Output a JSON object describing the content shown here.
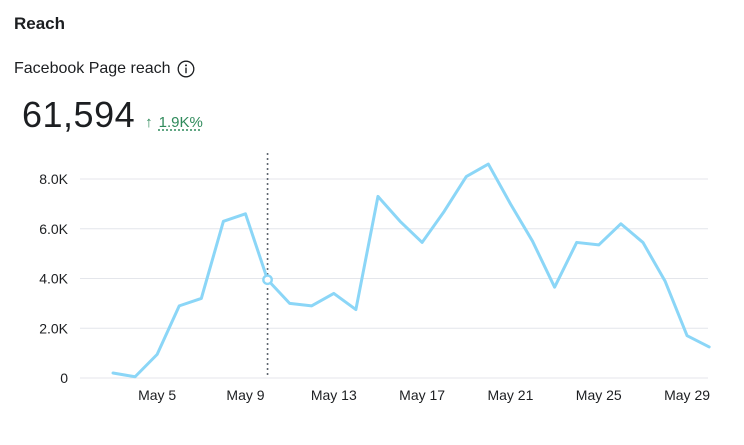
{
  "section": {
    "title": "Reach"
  },
  "metric": {
    "label": "Facebook Page reach",
    "info_icon": "info-circle-icon",
    "value": "61,594",
    "change_arrow": "↑",
    "change_value": "1.9K%",
    "change_color": "#2f8a5b"
  },
  "chart_data": {
    "type": "line",
    "x": [
      "May 3",
      "May 4",
      "May 5",
      "May 6",
      "May 7",
      "May 8",
      "May 9",
      "May 10",
      "May 11",
      "May 12",
      "May 13",
      "May 14",
      "May 15",
      "May 16",
      "May 17",
      "May 18",
      "May 19",
      "May 20",
      "May 21",
      "May 22",
      "May 23",
      "May 24",
      "May 25",
      "May 26",
      "May 27",
      "May 28",
      "May 29",
      "May 30"
    ],
    "series": [
      {
        "values": [
          200,
          50,
          950,
          2900,
          3200,
          6300,
          6600,
          3950,
          3000,
          2900,
          3400,
          2750,
          7300,
          6300,
          5450,
          6700,
          8100,
          8600,
          7000,
          5500,
          3650,
          5450,
          5350,
          6200,
          5450,
          3900,
          1700,
          1250
        ],
        "color": "#8bd6f7"
      }
    ],
    "x_tick_labels": [
      "May 5",
      "May 9",
      "May 13",
      "May 17",
      "May 21",
      "May 25",
      "May 29"
    ],
    "y_tick_labels": [
      "0",
      "2.0K",
      "4.0K",
      "6.0K",
      "8.0K"
    ],
    "y_ticks": [
      0,
      2000,
      4000,
      6000,
      8000
    ],
    "ylim": [
      0,
      8000
    ],
    "grid": true,
    "hover_index": 7,
    "gridline_color": "#e4e6eb",
    "hover_line_color": "#606770"
  }
}
